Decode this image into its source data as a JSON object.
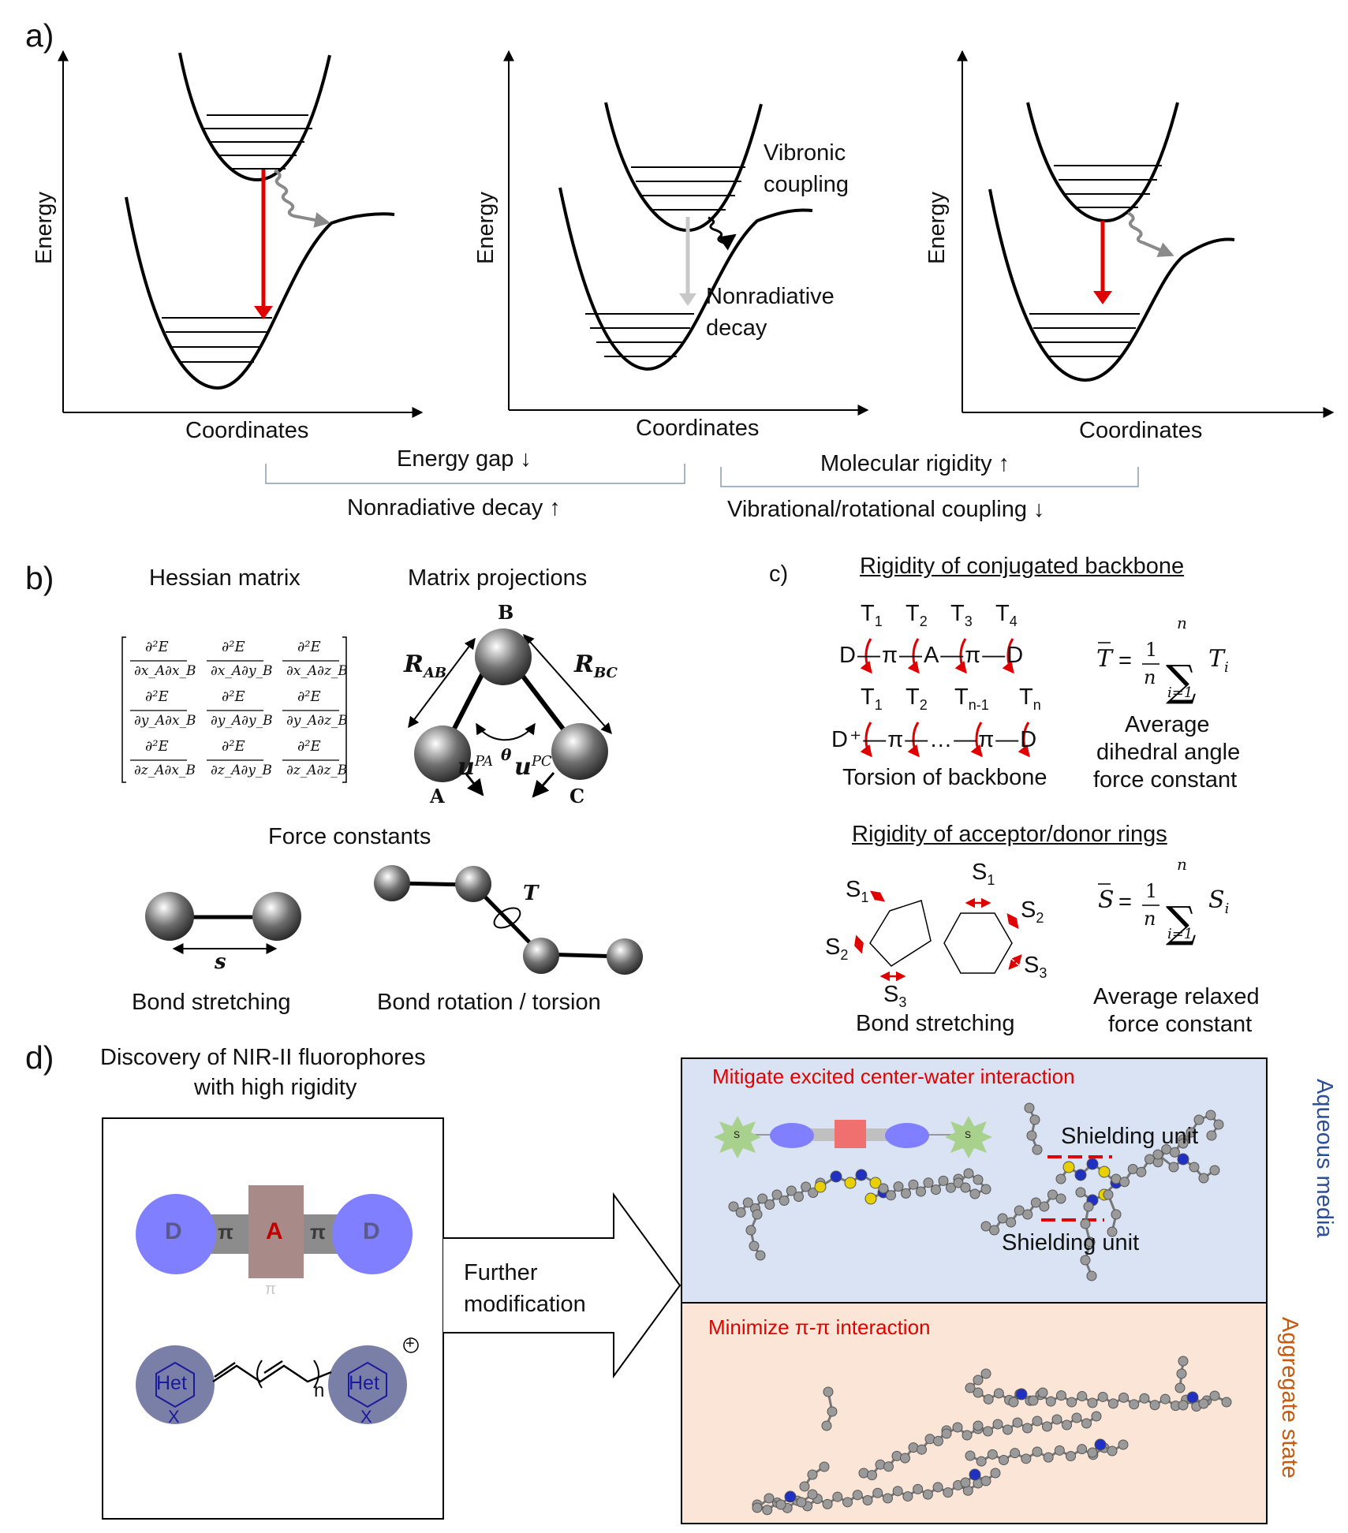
{
  "panels": {
    "a": {
      "label": "a)",
      "plots": [
        {
          "ylabel": "Energy",
          "xlabel": "Coordinates"
        },
        {
          "ylabel": "Energy",
          "xlabel": "Coordinates",
          "annotations": [
            "Vibronic",
            "coupling",
            "Nonradiative",
            "decay"
          ]
        },
        {
          "ylabel": "Energy",
          "xlabel": "Coordinates"
        }
      ],
      "brackets": {
        "left_top": "Energy gap ↓",
        "left_bottom": "Nonradiative decay ↑",
        "right_top": "Molecular rigidity ↑",
        "right_bottom": "Vibrational/rotational coupling ↓"
      }
    },
    "b": {
      "label": "b)",
      "hessian_title": "Hessian matrix",
      "hessian_cells": [
        [
          "∂²E/∂x_A∂x_B",
          "∂²E/∂x_A∂y_B",
          "∂²E/∂x_A∂z_B"
        ],
        [
          "∂²E/∂y_A∂x_B",
          "∂²E/∂y_A∂y_B",
          "∂²E/∂y_A∂z_B"
        ],
        [
          "∂²E/∂z_A∂x_B",
          "∂²E/∂z_A∂y_B",
          "∂²E/∂z_A∂z_B"
        ]
      ],
      "projections_title": "Matrix projections",
      "atoms": [
        "A",
        "B",
        "C"
      ],
      "symbols": {
        "rab": "R",
        "rab_sub": "AB",
        "rbc": "R",
        "rbc_sub": "BC",
        "theta": "θ",
        "upa": "u",
        "upa_sup": "PA",
        "upc": "u",
        "upc_sup": "PC",
        "s": "s",
        "t": "T"
      },
      "force_title": "Force constants",
      "stretch_label": "Bond stretching",
      "torsion_label": "Bond rotation / torsion"
    },
    "c": {
      "label": "c)",
      "backbone_title": "Rigidity of conjugated backbone",
      "row1_T": [
        "T",
        "T",
        "T",
        "T"
      ],
      "row1_T_sub": [
        "1",
        "2",
        "3",
        "4"
      ],
      "row1_chain": "D—π—A—π—D",
      "row2_T": [
        "T",
        "T",
        "T",
        "T"
      ],
      "row2_T_sub": [
        "1",
        "2",
        "n-1",
        "n"
      ],
      "row2_chain": "D⁺—π—…—π—D",
      "torsion_caption": "Torsion of backbone",
      "t_formula": {
        "lhs": "T",
        "eq": "=",
        "frac_num": "1",
        "frac_den": "n",
        "upper": "n",
        "lower": "i=1",
        "term": "T",
        "term_sub": "i"
      },
      "t_caption": [
        "Average",
        "dihedral angle",
        "force constant"
      ],
      "rings_title": "Rigidity of acceptor/donor rings",
      "pent_labels": [
        "S",
        "S",
        "S"
      ],
      "pent_subs": [
        "1",
        "2",
        "3"
      ],
      "hex_labels": [
        "S",
        "S",
        "S"
      ],
      "hex_subs": [
        "1",
        "2",
        "3"
      ],
      "ring_caption": "Bond stretching",
      "s_formula": {
        "lhs": "S",
        "eq": "=",
        "frac_num": "1",
        "frac_den": "n",
        "upper": "n",
        "lower": "i=1",
        "term": "S",
        "term_sub": "i"
      },
      "s_caption": [
        "Average relaxed",
        "force constant"
      ]
    },
    "d": {
      "label": "d)",
      "title_line1": "Discovery of NIR-II fluorophores",
      "title_line2": "with high rigidity",
      "donor": "D",
      "acceptor": "A",
      "pi": "π",
      "pi_small": "π",
      "het": "Het",
      "x": "X",
      "n": "n",
      "plus": "+",
      "arrow_line1": "Further",
      "arrow_line2": "modification",
      "top_box": {
        "heading": "Mitigate excited center-water interaction",
        "side": "Aqueous media",
        "s_label": "S",
        "shield1": "Shielding unit",
        "shield2": "Shielding unit",
        "bg": "#dae3f3"
      },
      "bottom_box": {
        "heading": "Minimize π-π interaction",
        "side": "Aggregate state",
        "bg": "#fbe5d6"
      }
    }
  },
  "colors": {
    "red": "#e00000",
    "grey": "#a6a6a6",
    "blue_circle": "#7f7fff",
    "acceptor": "#a88a88",
    "het": "#7a7fa8",
    "aqueous_text": "#2e4e9a",
    "aggregate_text": "#c55a11"
  }
}
